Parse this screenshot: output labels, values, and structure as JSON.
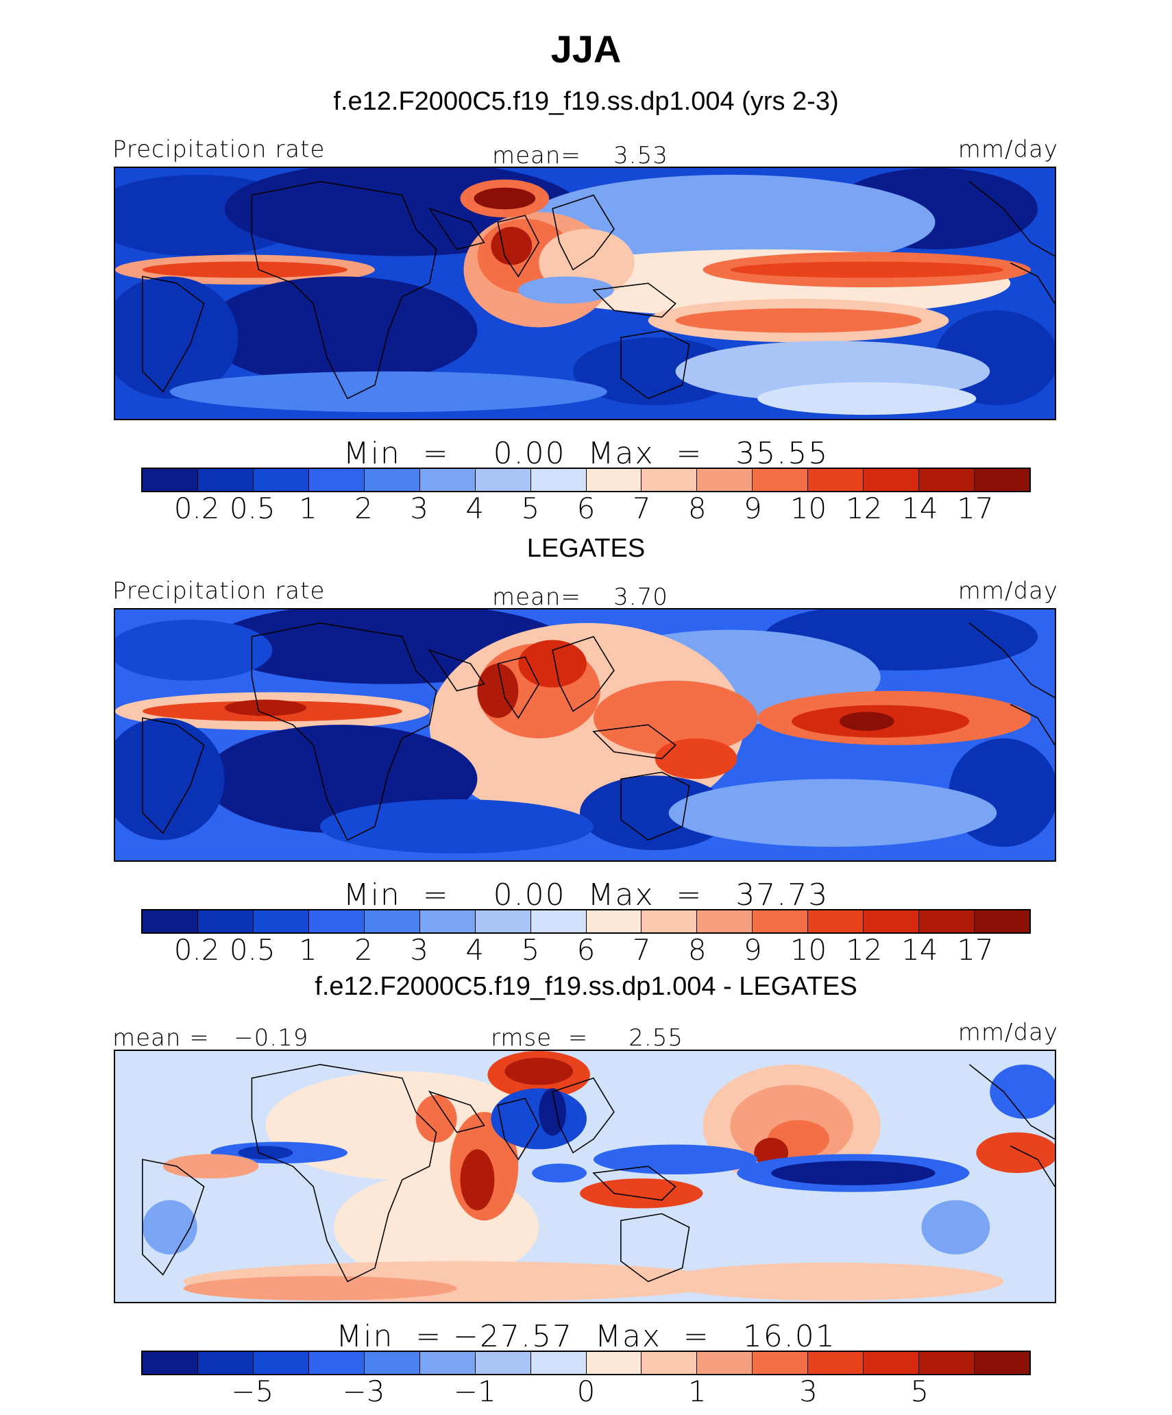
{
  "title": "JJA",
  "colors": {
    "scale": [
      "#0a1c8c",
      "#0a32b4",
      "#1449d6",
      "#2d64f0",
      "#4a82f2",
      "#7aa5f5",
      "#a9c5f8",
      "#d2e2fb",
      "#fde8d8",
      "#fbc8ae",
      "#f8a07e",
      "#f46e46",
      "#e9431e",
      "#d52a0e",
      "#b01a08",
      "#8a0f06"
    ]
  },
  "chart_data": [
    {
      "type": "heatmap",
      "subtitle": "f.e12.F2000C5.f19_f19.ss.dp1.004 (yrs 2-3)",
      "left_label": "Precipitation rate",
      "center_label": "mean=    3.53",
      "units": "mm/day",
      "min_max": "Min  =    0.00  Max  =   35.55",
      "colorbar_ticks": [
        "0.2",
        "0.5",
        "1",
        "2",
        "3",
        "4",
        "5",
        "6",
        "7",
        "8",
        "9",
        "10",
        "12",
        "14",
        "17"
      ]
    },
    {
      "type": "heatmap",
      "subtitle": "LEGATES",
      "left_label": "Precipitation rate",
      "center_label": "mean=    3.70",
      "units": "mm/day",
      "min_max": "Min  =    0.00  Max  =   37.73",
      "colorbar_ticks": [
        "0.2",
        "0.5",
        "1",
        "2",
        "3",
        "4",
        "5",
        "6",
        "7",
        "8",
        "9",
        "10",
        "12",
        "14",
        "17"
      ]
    },
    {
      "type": "heatmap",
      "subtitle": "f.e12.F2000C5.f19_f19.ss.dp1.004 - LEGATES",
      "left_label": "mean =   −0.19",
      "center_label": "rmse  =     2.55",
      "units": "mm/day",
      "min_max": "Min  = −27.57  Max  =   16.01",
      "colorbar_ticks": [
        "−5",
        "−3",
        "−1",
        "0",
        "1",
        "3",
        "5"
      ]
    }
  ]
}
